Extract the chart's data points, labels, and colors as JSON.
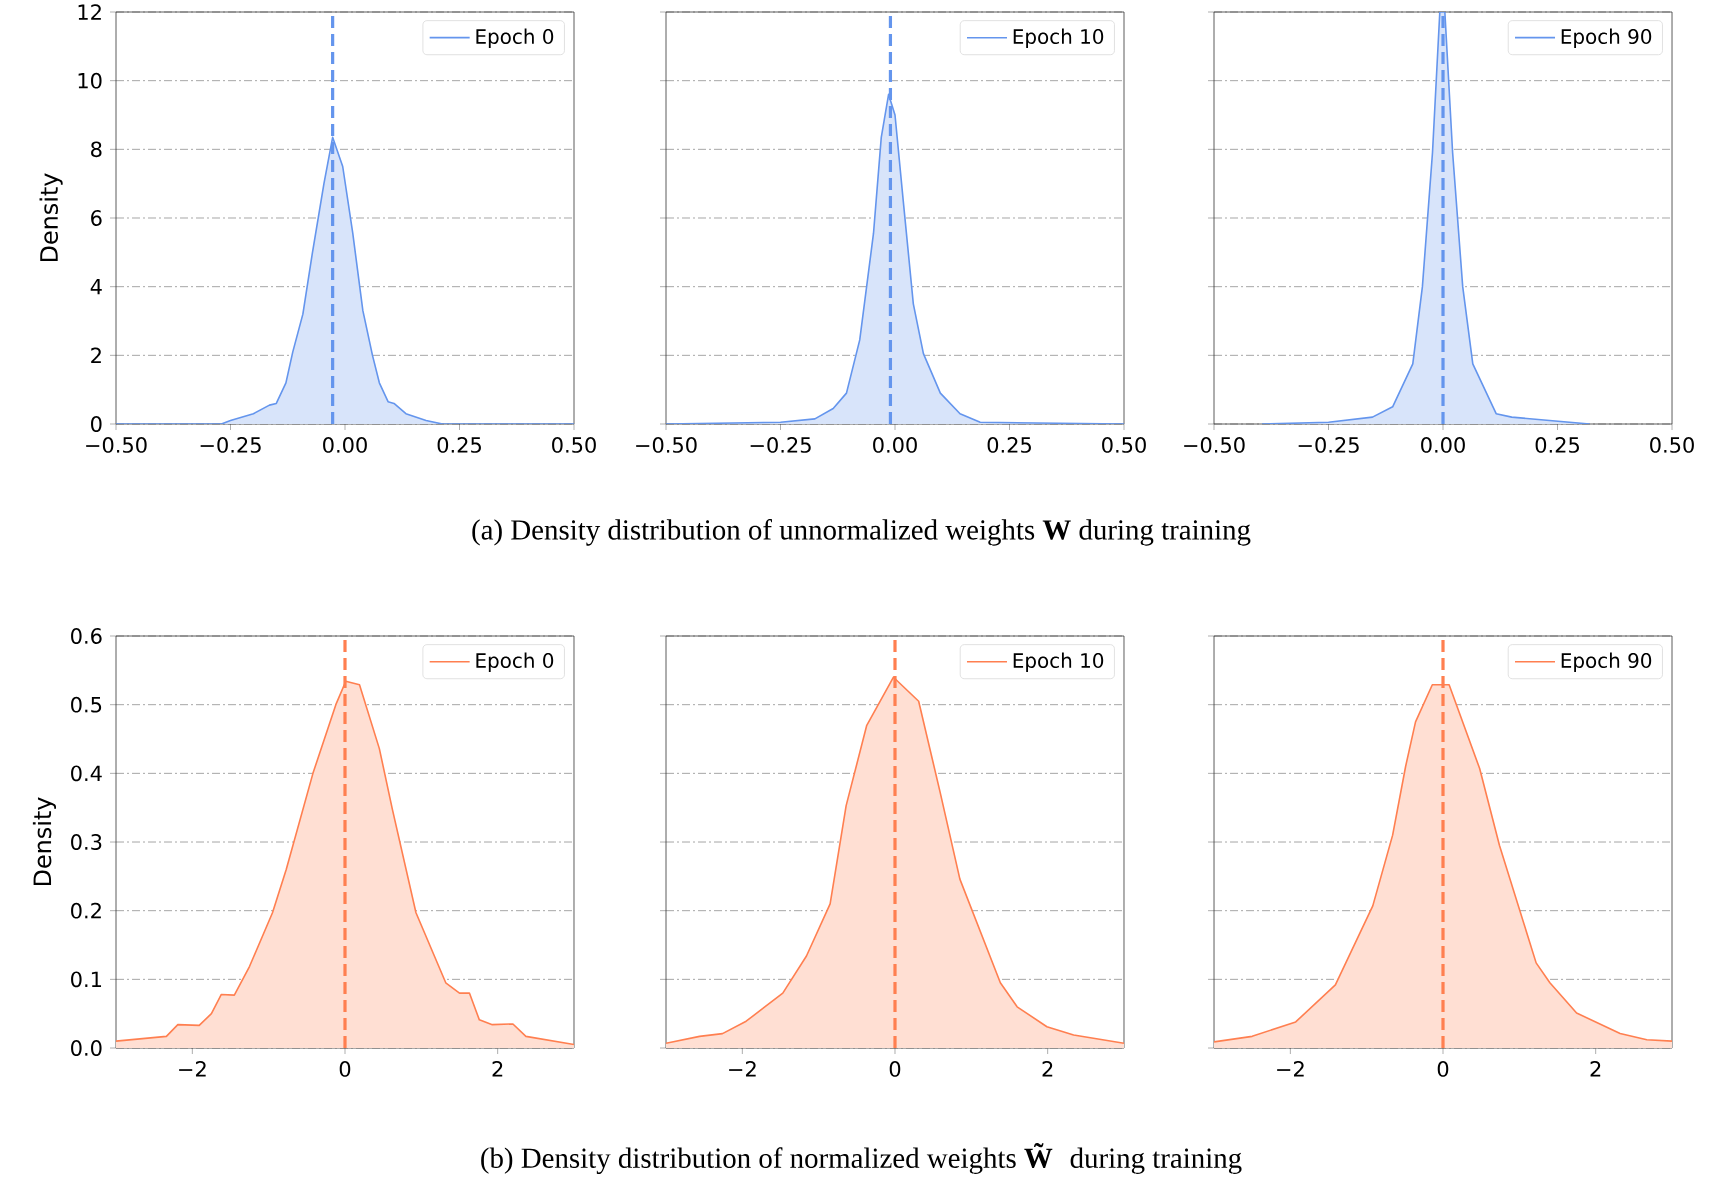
{
  "chart_data": [
    {
      "type": "area",
      "ylabel": "Density",
      "x": [
        -0.5,
        -0.27,
        -0.25,
        -0.2,
        -0.165,
        -0.15,
        -0.129,
        -0.114,
        -0.092,
        -0.071,
        -0.046,
        -0.027,
        -0.005,
        0.017,
        0.039,
        0.06,
        0.075,
        0.094,
        0.107,
        0.133,
        0.177,
        0.213,
        0.5
      ],
      "series": [
        {
          "name": "Epoch 0",
          "color": "#6495ed",
          "values": [
            0,
            0,
            0.1,
            0.3,
            0.55,
            0.6,
            1.2,
            2.1,
            3.2,
            5.0,
            7.0,
            8.35,
            7.5,
            5.55,
            3.3,
            2.0,
            1.2,
            0.65,
            0.6,
            0.3,
            0.1,
            0,
            0
          ]
        }
      ],
      "xlim": [
        -0.5,
        0.5
      ],
      "ylim": [
        0,
        12
      ],
      "xticks": [
        {
          "value": -0.5,
          "label": "−0.50"
        },
        {
          "value": -0.25,
          "label": "−0.25"
        },
        {
          "value": 0,
          "label": "0.00"
        },
        {
          "value": 0.25,
          "label": "0.25"
        },
        {
          "value": 0.5,
          "label": "0.50"
        }
      ],
      "yticks": [
        0,
        2,
        4,
        6,
        8,
        10,
        12
      ],
      "grid": "y",
      "legend": "top right",
      "ref_lines": [
        {
          "axis": "x",
          "value": -0.027,
          "color": "#6495ed",
          "line_style": "dashed"
        }
      ]
    },
    {
      "type": "area",
      "x": [
        -0.5,
        -0.25,
        -0.175,
        -0.135,
        -0.106,
        -0.077,
        -0.047,
        -0.03,
        -0.014,
        0.0,
        0.018,
        0.04,
        0.062,
        0.099,
        0.142,
        0.186,
        0.5
      ],
      "series": [
        {
          "name": "Epoch 10",
          "color": "#6495ed",
          "values": [
            0,
            0.05,
            0.15,
            0.45,
            0.9,
            2.45,
            5.55,
            8.35,
            9.6,
            9.0,
            6.5,
            3.5,
            2.05,
            0.9,
            0.3,
            0.05,
            0
          ]
        }
      ],
      "xlim": [
        -0.5,
        0.5
      ],
      "ylim": [
        0,
        12
      ],
      "xticks": [
        {
          "value": -0.5,
          "label": "−0.50"
        },
        {
          "value": -0.25,
          "label": "−0.25"
        },
        {
          "value": 0,
          "label": "0.00"
        },
        {
          "value": 0.25,
          "label": "0.25"
        },
        {
          "value": 0.5,
          "label": "0.50"
        }
      ],
      "yticks": [
        0,
        2,
        4,
        6,
        8,
        10,
        12
      ],
      "grid": "y",
      "legend": "top right",
      "tick_labels": "x",
      "ref_lines": [
        {
          "axis": "x",
          "value": -0.01,
          "color": "#6495ed",
          "line_style": "dashed"
        }
      ],
      "annotations": [
        "(a) Density distribution of unnormalized weights **W** during training"
      ]
    },
    {
      "type": "area",
      "x": [
        -0.395,
        -0.25,
        -0.154,
        -0.11,
        -0.066,
        -0.045,
        -0.023,
        -0.007,
        0.004,
        0.021,
        0.043,
        0.065,
        0.116,
        0.15,
        0.32
      ],
      "series": [
        {
          "name": "Epoch 90",
          "color": "#6495ed",
          "values": [
            0,
            0.05,
            0.2,
            0.5,
            1.75,
            4.0,
            7.9,
            12,
            12,
            7.9,
            4.0,
            1.75,
            0.3,
            0.2,
            0
          ]
        }
      ],
      "xlim": [
        -0.5,
        0.5
      ],
      "ylim": [
        0,
        12
      ],
      "xticks": [
        {
          "value": -0.5,
          "label": "−0.50"
        },
        {
          "value": -0.25,
          "label": "−0.25"
        },
        {
          "value": 0,
          "label": "0.00"
        },
        {
          "value": 0.25,
          "label": "0.25"
        },
        {
          "value": 0.5,
          "label": "0.50"
        }
      ],
      "yticks": [
        0,
        2,
        4,
        6,
        8,
        10,
        12
      ],
      "grid": "y",
      "legend": "top right",
      "tick_labels": "x",
      "ref_lines": [
        {
          "axis": "x",
          "value": 0,
          "color": "#6495ed",
          "line_style": "dashed"
        }
      ]
    },
    {
      "type": "area",
      "ylabel": "Density",
      "x": [
        -3,
        -2.34,
        -2.19,
        -1.91,
        -1.75,
        -1.62,
        -1.45,
        -1.25,
        -0.95,
        -0.77,
        -0.42,
        -0.12,
        0.01,
        0.19,
        0.45,
        0.62,
        0.93,
        1.32,
        1.5,
        1.63,
        1.76,
        1.93,
        2.2,
        2.37,
        3
      ],
      "series": [
        {
          "name": "Epoch 0",
          "color": "#ff7f50",
          "values": [
            0.01,
            0.017,
            0.034,
            0.033,
            0.05,
            0.078,
            0.077,
            0.119,
            0.197,
            0.26,
            0.4,
            0.5,
            0.534,
            0.529,
            0.436,
            0.348,
            0.197,
            0.095,
            0.08,
            0.08,
            0.041,
            0.034,
            0.035,
            0.017,
            0.005
          ]
        }
      ],
      "xlim": [
        -3,
        3
      ],
      "ylim": [
        0,
        0.6
      ],
      "xticks": [
        {
          "value": -2,
          "label": "−2"
        },
        0,
        2
      ],
      "yticks": [
        {
          "value": 0,
          "label": "0.0"
        },
        0.1,
        0.2,
        0.3,
        0.4,
        0.5,
        0.6
      ],
      "grid": "y",
      "legend": "top right",
      "ref_lines": [
        {
          "axis": "x",
          "value": 0,
          "color": "#ff7f50",
          "line_style": "dashed"
        }
      ]
    },
    {
      "type": "area",
      "x": [
        -3,
        -2.56,
        -2.26,
        -1.95,
        -1.47,
        -1.16,
        -0.85,
        -0.64,
        -0.37,
        -0.02,
        0.31,
        0.59,
        0.85,
        1.38,
        1.6,
        1.99,
        2.34,
        2.56,
        3
      ],
      "series": [
        {
          "name": "Epoch 10",
          "color": "#ff7f50",
          "values": [
            0.007,
            0.017,
            0.021,
            0.039,
            0.08,
            0.134,
            0.21,
            0.353,
            0.47,
            0.54,
            0.505,
            0.373,
            0.246,
            0.095,
            0.06,
            0.031,
            0.019,
            0.015,
            0.007
          ]
        }
      ],
      "xlim": [
        -3,
        3
      ],
      "ylim": [
        0,
        0.6
      ],
      "xticks": [
        {
          "value": -2,
          "label": "−2"
        },
        0,
        2
      ],
      "yticks": [
        0,
        0.1,
        0.2,
        0.3,
        0.4,
        0.5,
        0.6
      ],
      "grid": "y",
      "legend": "top right",
      "tick_labels": "x",
      "ref_lines": [
        {
          "axis": "x",
          "value": 0,
          "color": "#ff7f50",
          "line_style": "dashed"
        }
      ],
      "annotations": [
        "(b) Density distribution of normalized weights **W̃** during training"
      ]
    },
    {
      "type": "area",
      "x": [
        -3,
        -2.5,
        -1.93,
        -1.41,
        -0.92,
        -0.66,
        -0.49,
        -0.36,
        -0.14,
        0.08,
        0.48,
        0.74,
        1.22,
        1.4,
        1.75,
        2.32,
        2.67,
        3
      ],
      "series": [
        {
          "name": "Epoch 90",
          "color": "#ff7f50",
          "values": [
            0.009,
            0.017,
            0.038,
            0.092,
            0.207,
            0.31,
            0.41,
            0.475,
            0.529,
            0.529,
            0.407,
            0.295,
            0.124,
            0.095,
            0.051,
            0.021,
            0.012,
            0.01
          ]
        }
      ],
      "xlim": [
        -3,
        3
      ],
      "ylim": [
        0,
        0.6
      ],
      "xticks": [
        {
          "value": -2,
          "label": "−2"
        },
        0,
        2
      ],
      "yticks": [
        0,
        0.1,
        0.2,
        0.3,
        0.4,
        0.5,
        0.6
      ],
      "grid": "y",
      "legend": "top right",
      "tick_labels": "x",
      "ref_lines": [
        {
          "axis": "x",
          "value": 0,
          "color": "#ff7f50",
          "line_style": "dashed"
        }
      ]
    }
  ]
}
